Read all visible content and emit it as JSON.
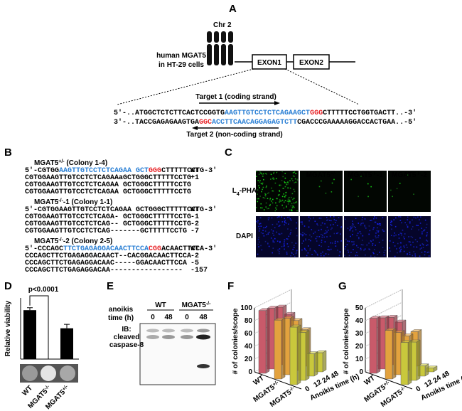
{
  "panel_a": {
    "letter": "A",
    "chromosome": "Chr 2",
    "gene_label": [
      "human MGAT5",
      "in HT-29 cells"
    ],
    "exons": [
      "EXON1",
      "EXON2"
    ],
    "target1": "Target 1 (coding strand)",
    "target2": "Target 2 (non-coding strand)",
    "seq_top": [
      {
        "text": "5'-..ATGGCTCTCTTCACTCCGGTG"
      },
      {
        "text": "AAGTTGTCCTCTCAGAAGCT",
        "color": "#2a7fd4"
      },
      {
        "text": "GGG",
        "color": "#e8262a"
      },
      {
        "text": "CTTTTTCCTGGTGACTT..-3'"
      }
    ],
    "seq_bottom": [
      {
        "text": "3'-..TACCGAGAGAAGTGA"
      },
      {
        "text": "GGC",
        "color": "#e8262a"
      },
      {
        "text": "ACCTTCAACAGGAGAGTCTT",
        "color": "#2a7fd4"
      },
      {
        "text": "CGACCCGAAAAAGGACCACTGAA..-5'"
      }
    ]
  },
  "panel_b": {
    "letter": "B",
    "groups": [
      {
        "title": "MGAT5+/- (Colony 1-4)",
        "lines": [
          {
            "parts": [
              {
                "text": "5'-CGTGG"
              },
              {
                "text": "AAGTTGTCCTCTCAGAA GCT",
                "color": "#2a7fd4"
              },
              {
                "text": "GGG",
                "color": "#e8262a"
              },
              {
                "text": "CTTTTTCCTG-3'"
              }
            ],
            "label": "WT"
          },
          {
            "parts": [
              {
                "text": "   CGTGGAAGTTGTCCTCTCAGAAaGCTGGGCTTTTTCCTG"
              }
            ],
            "label": "+1"
          },
          {
            "parts": [
              {
                "text": "   CGTGGAAGTTGTCCTCTCAGAA GCTGGGCTTTTTCCTG"
              }
            ]
          },
          {
            "parts": [
              {
                "text": "   CGTGGAAGTTGTCCTCTCAGAA GCTGGGCTTTTTCCTG"
              }
            ]
          }
        ]
      },
      {
        "title": "MGAT5-/--1 (Colony 1-1)",
        "lines": [
          {
            "parts": [
              {
                "text": "5'-CGTGGAAGTTGTCCTCTCAGAA GCTGGGCTTTTTCCTG-3'"
              }
            ],
            "label": "WT"
          },
          {
            "parts": [
              {
                "text": "   CGTGGAAGTTGTCCTCTCAGA- GCTGGGCTTTTTCCTG"
              }
            ],
            "label": "-1"
          },
          {
            "parts": [
              {
                "text": "   CGTGGAAGTTGTCCTCTCAG-- GCTGGGCTTTTTCCTG"
              }
            ],
            "label": "-2"
          },
          {
            "parts": [
              {
                "text": "   CGTGGAAGTTGTCCTCTCAG-------GCTTTTTCCTG"
              }
            ],
            "label": "-7"
          }
        ]
      },
      {
        "title": "MGAT5-/--2 (Colony 2-5)",
        "lines": [
          {
            "parts": [
              {
                "text": "5'-CCCAGC"
              },
              {
                "text": "TTCTGAGAGGACAACTTCCA",
                "color": "#2a7fd4"
              },
              {
                "text": "CGG",
                "color": "#e8262a"
              },
              {
                "text": "ACAACTTCCA-3'"
              }
            ],
            "label": "WT"
          },
          {
            "parts": [
              {
                "text": "   CCCAGCTTCTGAGAGGACAACT--CACGGACAACTTCCA"
              }
            ],
            "label": "-2"
          },
          {
            "parts": [
              {
                "text": "   CCCAGCTTCTGAGAGGACAAC-----GGACAACTTCCA"
              }
            ],
            "label": "-5"
          },
          {
            "parts": [
              {
                "text": "   CCCAGCTTCTGAGAGGACAA-----------------"
              }
            ],
            "label": "-157"
          }
        ]
      }
    ]
  },
  "panel_c": {
    "letter": "C",
    "columns": [
      "WT",
      "MGAT5+/-",
      "MGAT5-/--1",
      "MGAT5-/--2"
    ],
    "rows": [
      "L4-PHA",
      "DAPI"
    ]
  },
  "panel_e": {
    "letter": "E",
    "time_label": [
      "anoikis",
      "time (h)"
    ],
    "groups": [
      "WT",
      "MGAT5-/-"
    ],
    "lanes": [
      "0",
      "48",
      "0",
      "48"
    ],
    "blot_label": [
      "IB:",
      "cleaved",
      "caspase-8"
    ]
  },
  "chart_data": [
    {
      "type": "bar",
      "panel": "D",
      "ylabel": "Relative viability",
      "categories": [
        "WT",
        "MGAT5-/-",
        "MGAT5+/-"
      ],
      "values": [
        1.0,
        0,
        0.63
      ],
      "errors": [
        0.05,
        null,
        0.08
      ],
      "color": "#000000",
      "ylim": [
        0,
        1.25
      ],
      "annotation": "p<0.0001"
    },
    {
      "type": "bar3d",
      "panel": "F",
      "ylabel": "# of colonies/scope",
      "xlabel": "Anoikis time (h)",
      "x": [
        "0",
        "12",
        "24",
        "48"
      ],
      "series": [
        {
          "name": "WT",
          "color": "#c95a6a",
          "values": [
            98,
            95,
            90,
            72
          ]
        },
        {
          "name": "MGAT5+/-",
          "color": "#e3a23e",
          "values": [
            92,
            88,
            78,
            57
          ]
        },
        {
          "name": "MGAT5-/-",
          "color": "#c9c83c",
          "values": [
            90,
            75,
            35,
            30
          ]
        }
      ],
      "ylim": [
        0,
        100
      ],
      "yticks": [
        0,
        20,
        40,
        60,
        80,
        100
      ],
      "grid": true
    },
    {
      "type": "bar3d",
      "panel": "G",
      "ylabel": "# of colonies/scope",
      "xlabel": "Anoikis time (h)",
      "x": [
        "0",
        "12",
        "24",
        "48"
      ],
      "series": [
        {
          "name": "WT",
          "color": "#c95a6a",
          "values": [
            43,
            40,
            37,
            30
          ]
        },
        {
          "name": "MGAT5+/-",
          "color": "#e3a23e",
          "values": [
            38,
            33,
            27,
            27
          ]
        },
        {
          "name": "MGAT5-/-",
          "color": "#c9c83c",
          "values": [
            33,
            30,
            8,
            3
          ]
        }
      ],
      "ylim": [
        0,
        50
      ],
      "yticks": [
        0,
        10,
        20,
        30,
        40,
        50
      ],
      "grid": true
    }
  ]
}
